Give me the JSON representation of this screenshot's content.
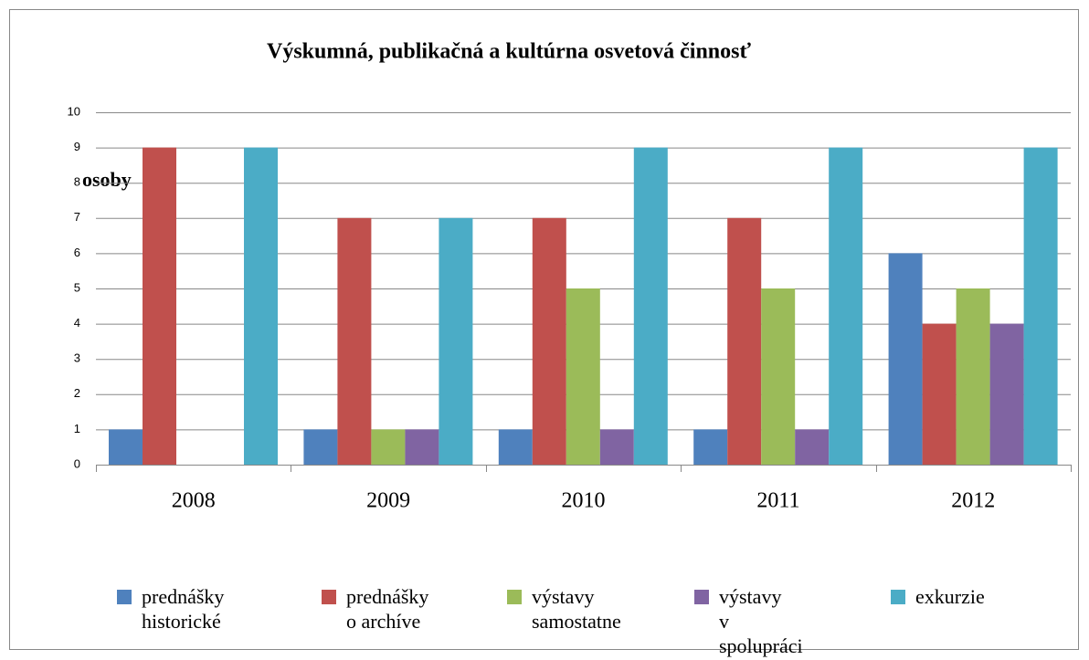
{
  "chart_data": {
    "type": "bar",
    "title": "Výskumná, publikačná a kultúrna osvetová činnosť",
    "y_label": "osoby",
    "categories": [
      "2008",
      "2009",
      "2010",
      "2011",
      "2012"
    ],
    "series": [
      {
        "name": "prednášky historické",
        "color": "#4f81bd",
        "values": [
          1,
          1,
          1,
          1,
          6
        ]
      },
      {
        "name": "prednášky o archíve",
        "color": "#c0504d",
        "values": [
          9,
          7,
          7,
          7,
          4
        ]
      },
      {
        "name": "výstavy samostatne",
        "color": "#9bbb59",
        "values": [
          0,
          1,
          5,
          5,
          5
        ]
      },
      {
        "name": "výstavy v spolupráci",
        "color": "#8064a2",
        "values": [
          0,
          1,
          1,
          1,
          4
        ]
      },
      {
        "name": "exkurzie",
        "color": "#4bacc6",
        "values": [
          9,
          7,
          9,
          9,
          9
        ]
      }
    ],
    "ylim": [
      0,
      10
    ],
    "yticks": [
      0,
      1,
      2,
      3,
      4,
      5,
      6,
      7,
      8,
      9,
      10
    ],
    "grid": true,
    "legend": "bottom"
  }
}
